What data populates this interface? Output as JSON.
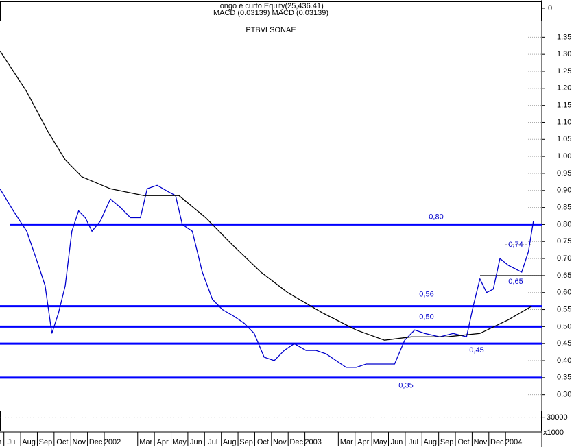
{
  "indicator_panel": {
    "title": "longo e curto Equity(25,436.41)",
    "subtitle": "MACD (0.03139) MACD (0.03139)",
    "ylim": [
      -0.04,
      0.02
    ],
    "yticks": [
      0
    ]
  },
  "chart_data": {
    "type": "line",
    "title": "PTBVLSONAE",
    "series": [
      {
        "color": "#0000cc",
        "x": [
          -0.3,
          0.5,
          1.3,
          2.0,
          2.4,
          2.8,
          3.2,
          3.6,
          4.0,
          4.4,
          4.8,
          5.2,
          5.7,
          6.3,
          6.9,
          7.5,
          8.1,
          8.5,
          9.1,
          9.8,
          10.2,
          10.6,
          11.2,
          11.8,
          12.4,
          13.0,
          13.7,
          14.3,
          14.9,
          15.5,
          16.1,
          16.7,
          17.3,
          18.0,
          18.6,
          19.2,
          19.8,
          20.4,
          21.0,
          21.6,
          22.5,
          23.3,
          23.9,
          24.5,
          25.1,
          26.0,
          26.8,
          27.6,
          28.0,
          28.4,
          28.8,
          29.2,
          29.6,
          30.1,
          30.5,
          30.9,
          31.3,
          31.6
        ],
        "values": [
          0.905,
          0.84,
          0.78,
          0.68,
          0.62,
          0.48,
          0.54,
          0.62,
          0.78,
          0.84,
          0.82,
          0.78,
          0.81,
          0.875,
          0.85,
          0.82,
          0.82,
          0.905,
          0.915,
          0.895,
          0.885,
          0.8,
          0.78,
          0.66,
          0.58,
          0.55,
          0.53,
          0.51,
          0.48,
          0.41,
          0.4,
          0.43,
          0.45,
          0.43,
          0.43,
          0.42,
          0.4,
          0.38,
          0.38,
          0.39,
          0.39,
          0.39,
          0.46,
          0.49,
          0.48,
          0.47,
          0.48,
          0.47,
          0.56,
          0.64,
          0.6,
          0.61,
          0.7,
          0.68,
          0.67,
          0.66,
          0.72,
          0.81
        ]
      },
      {
        "color": "#000000",
        "x": [
          -0.3,
          1.3,
          2.6,
          3.6,
          4.6,
          6.3,
          8.3,
          10.4,
          12.0,
          13.6,
          15.3,
          16.9,
          19.0,
          21.0,
          22.7,
          24.3,
          26.4,
          28.4,
          30.1,
          31.5
        ],
        "values": [
          1.31,
          1.19,
          1.07,
          0.99,
          0.94,
          0.905,
          0.885,
          0.885,
          0.82,
          0.74,
          0.66,
          0.6,
          0.54,
          0.49,
          0.46,
          0.47,
          0.47,
          0.48,
          0.52,
          0.56
        ]
      }
    ],
    "xlim": [
      -0.3,
      32.1
    ],
    "ylim": [
      0.255,
      1.393
    ],
    "xticks": [
      {
        "value": 0,
        "label": "Jun"
      },
      {
        "value": 1,
        "label": "Jul"
      },
      {
        "value": 2,
        "label": "Aug"
      },
      {
        "value": 3,
        "label": "Sep"
      },
      {
        "value": 4,
        "label": "Oct"
      },
      {
        "value": 5,
        "label": "Nov"
      },
      {
        "value": 6,
        "label": "Dec"
      },
      {
        "value": 7,
        "label": "2002"
      },
      {
        "value": 9,
        "label": "Mar"
      },
      {
        "value": 10,
        "label": "Apr"
      },
      {
        "value": 11,
        "label": "May"
      },
      {
        "value": 12,
        "label": "Jun"
      },
      {
        "value": 13,
        "label": "Jul"
      },
      {
        "value": 14,
        "label": "Aug"
      },
      {
        "value": 15,
        "label": "Sep"
      },
      {
        "value": 16,
        "label": "Oct"
      },
      {
        "value": 17,
        "label": "Nov"
      },
      {
        "value": 18,
        "label": "Dec"
      },
      {
        "value": 19,
        "label": "2003"
      },
      {
        "value": 21,
        "label": "Mar"
      },
      {
        "value": 22,
        "label": "Apr"
      },
      {
        "value": 23,
        "label": "May"
      },
      {
        "value": 24,
        "label": "Jun"
      },
      {
        "value": 25,
        "label": "Jul"
      },
      {
        "value": 26,
        "label": "Aug"
      },
      {
        "value": 27,
        "label": "Sep"
      },
      {
        "value": 28,
        "label": "Oct"
      },
      {
        "value": 29,
        "label": "Nov"
      },
      {
        "value": 30,
        "label": "Dec"
      },
      {
        "value": 31,
        "label": "2004"
      }
    ],
    "yticks": [
      1.35,
      {
        "value": 1.3,
        "label": "1.30"
      },
      1.25,
      {
        "value": 1.2,
        "label": "1.20"
      },
      1.15,
      {
        "value": 1.1,
        "label": "1.10"
      },
      1.05,
      {
        "value": 1,
        "label": "1.00"
      },
      0.95,
      {
        "value": 0.9,
        "label": "0.90"
      },
      0.85,
      {
        "value": 0.8,
        "label": "0.80"
      },
      0.75,
      {
        "value": 0.7,
        "label": "0.70"
      },
      0.65,
      {
        "value": 0.6,
        "label": "0.60"
      },
      0.55,
      {
        "value": 0.5,
        "label": "0.50"
      },
      0.45,
      {
        "value": 0.4,
        "label": "0.40"
      },
      0.35,
      {
        "value": 0.3,
        "label": "0.30"
      }
    ],
    "levels": [
      {
        "value": 0.8,
        "label": "0,80"
      },
      {
        "value": 0.56,
        "label": "0,56"
      },
      {
        "value": 0.5,
        "label": "0,50"
      },
      {
        "value": 0.45,
        "label": "0,45"
      },
      {
        "value": 0.35,
        "label": "0,35"
      }
    ],
    "annotations": [
      {
        "value": 0.74,
        "label": "0,74"
      },
      {
        "value": 0.65,
        "label": "0,65"
      }
    ],
    "level_color": "#0000ff"
  },
  "volume_panel": {
    "ylim": [
      0,
      45000
    ],
    "yticks": [
      30000
    ],
    "unit": "x1000"
  }
}
